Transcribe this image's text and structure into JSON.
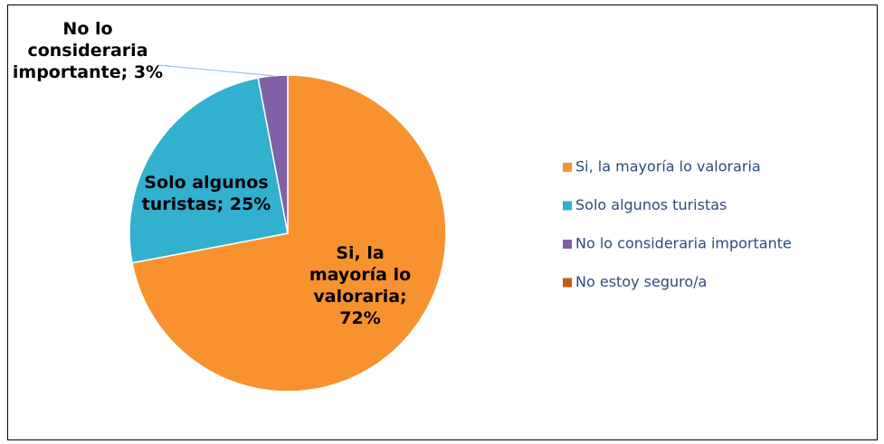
{
  "chart_data": {
    "type": "pie",
    "categories": [
      "Si, la mayoría lo valoraria",
      "Solo algunos turistas",
      "No lo consideraria importante",
      "No estoy seguro/a"
    ],
    "values": [
      72,
      25,
      3,
      0
    ],
    "value_labels": [
      "Si, la mayoría lo valoraria; 72%",
      "Solo algunos turistas; 25%",
      "No lo consideraria importante; 3%",
      null
    ],
    "colors": [
      "#f7922f",
      "#31b0cf",
      "#7f62a6",
      "#c55a11"
    ],
    "legend": "right"
  }
}
